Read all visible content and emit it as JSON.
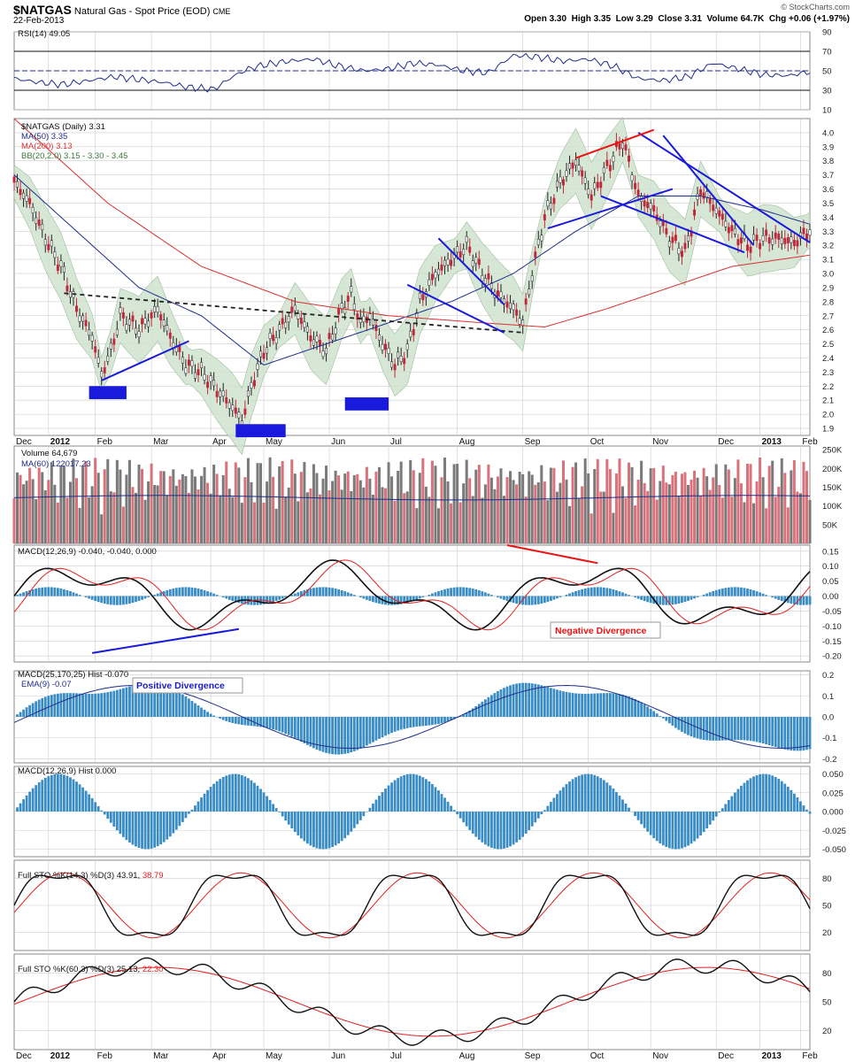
{
  "header": {
    "symbol": "$NATGAS",
    "name": "Natural Gas - Spot Price (EOD)",
    "exchange": "CME",
    "date": "22-Feb-2013",
    "ohlc": "Open 3.30  High 3.35  Low 3.29  Close 3.31  Volume 64.7K  Chg +0.06 (+1.97%)",
    "source": "© StockCharts.com"
  },
  "x_axis": {
    "labels": [
      "Dec",
      "2012",
      "Feb",
      "Mar",
      "Apr",
      "May",
      "Jun",
      "Jul",
      "Aug",
      "Sep",
      "Oct",
      "Nov",
      "Dec",
      "2013",
      "Feb"
    ]
  },
  "colors": {
    "price_up": "#222222",
    "price_down": "#c0283a",
    "ma50": "#1f2d8a",
    "ma200": "#d93030",
    "bb_fill": "#cfe3cf",
    "vol_up": "#7a7a7a",
    "vol_down": "#d9727a",
    "macd_hist": "#3a8dc4",
    "trend_blue": "#1a1adc",
    "trend_red": "#ee1111",
    "neckline": "#222222",
    "sto_k": "#111111",
    "sto_d": "#e02020",
    "grid": "#cccccc"
  },
  "chart_data": [
    {
      "type": "line",
      "panel": "rsi",
      "legend": "RSI(14) 49.05",
      "ylim": [
        10,
        90
      ],
      "yticks": [
        10,
        30,
        50,
        70,
        90
      ],
      "hlines": [
        30,
        50,
        70
      ],
      "series": [
        {
          "name": "RSI(14)",
          "x": [
            0,
            8,
            16,
            24,
            32,
            40,
            48,
            56,
            64,
            70,
            75,
            80,
            88,
            96,
            104,
            112,
            120,
            128,
            136,
            144,
            152,
            160,
            168,
            176,
            184,
            192,
            200,
            208,
            216,
            224,
            232,
            240,
            248,
            255
          ],
          "values": [
            42,
            38,
            36,
            40,
            44,
            41,
            38,
            33,
            31,
            44,
            52,
            56,
            60,
            62,
            55,
            50,
            52,
            58,
            56,
            50,
            48,
            66,
            64,
            60,
            62,
            55,
            42,
            40,
            44,
            58,
            52,
            46,
            45,
            49.05
          ]
        }
      ]
    },
    {
      "type": "line",
      "panel": "price",
      "legend": [
        "$NATGAS (Daily) 3.31",
        "MA(50) 3.35",
        "MA(200) 3.13",
        "BB(20,2.0) 3.15 - 3.30 - 3.45"
      ],
      "ylim": [
        1.85,
        4.1
      ],
      "yticks": [
        1.9,
        2.0,
        2.1,
        2.2,
        2.3,
        2.4,
        2.5,
        2.6,
        2.7,
        2.8,
        2.9,
        3.0,
        3.1,
        3.2,
        3.3,
        3.4,
        3.5,
        3.6,
        3.7,
        3.8,
        3.9,
        4.0
      ],
      "series": [
        {
          "name": "$NATGAS",
          "x": [
            0,
            5,
            10,
            15,
            20,
            25,
            28,
            31,
            34,
            40,
            46,
            50,
            55,
            60,
            66,
            70,
            73,
            76,
            80,
            85,
            90,
            95,
            100,
            105,
            108,
            111,
            114,
            118,
            122,
            126,
            130,
            135,
            140,
            145,
            150,
            155,
            160,
            163,
            166,
            170,
            175,
            180,
            185,
            190,
            195,
            200,
            205,
            210,
            215,
            220,
            225,
            230,
            235,
            240,
            245,
            250,
            255
          ],
          "values": [
            3.65,
            3.5,
            3.25,
            3.05,
            2.75,
            2.55,
            2.28,
            2.45,
            2.7,
            2.6,
            2.75,
            2.55,
            2.35,
            2.3,
            2.15,
            2.05,
            1.95,
            2.2,
            2.45,
            2.6,
            2.75,
            2.55,
            2.45,
            2.75,
            2.85,
            2.65,
            2.7,
            2.5,
            2.35,
            2.45,
            2.8,
            3.0,
            3.1,
            3.2,
            3.0,
            2.85,
            2.75,
            2.65,
            3.0,
            3.4,
            3.65,
            3.8,
            3.55,
            3.75,
            3.95,
            3.55,
            3.45,
            3.25,
            3.15,
            3.6,
            3.45,
            3.3,
            3.2,
            3.25,
            3.25,
            3.22,
            3.31
          ]
        },
        {
          "name": "MA(50)",
          "x": [
            0,
            20,
            40,
            60,
            80,
            100,
            120,
            140,
            160,
            180,
            200,
            220,
            240,
            255
          ],
          "values": [
            3.7,
            3.3,
            2.9,
            2.7,
            2.35,
            2.5,
            2.65,
            2.8,
            3.0,
            3.3,
            3.55,
            3.55,
            3.45,
            3.35
          ]
        },
        {
          "name": "MA(200)",
          "x": [
            0,
            30,
            60,
            90,
            120,
            150,
            170,
            190,
            210,
            230,
            255
          ],
          "values": [
            4.1,
            3.5,
            3.05,
            2.8,
            2.7,
            2.65,
            2.62,
            2.75,
            2.9,
            3.05,
            3.13
          ]
        }
      ],
      "annotations": [
        "trendlines",
        "falling wedge channels",
        "support boxes",
        "neckline"
      ]
    },
    {
      "type": "bar",
      "panel": "volume",
      "legend": [
        "Volume 64,679",
        "MA(60) 122017.23"
      ],
      "yticks": [
        "250K",
        "200K",
        "150K",
        "100K",
        "50K"
      ],
      "ylim": [
        0,
        250000
      ],
      "series": [
        {
          "name": "MA(60)",
          "values": [
            122017.23
          ]
        }
      ]
    },
    {
      "type": "line",
      "panel": "macd1",
      "legend": "MACD(12,26,9) -0.040, -0.040, 0.000",
      "ylim": [
        -0.22,
        0.17
      ],
      "yticks": [
        0.15,
        0.1,
        0.05,
        0.0,
        -0.05,
        -0.1,
        -0.15,
        -0.2
      ],
      "annotation": "Negative Divergence"
    },
    {
      "type": "bar",
      "panel": "macd2",
      "legend": [
        "MACD(25,170,25) Hist -0.070",
        "EMA(9) -0.07"
      ],
      "ylim": [
        -0.22,
        0.22
      ],
      "yticks": [
        0.2,
        0.1,
        0.0,
        -0.1,
        -0.2
      ],
      "annotation": "Positive Divergence"
    },
    {
      "type": "bar",
      "panel": "macd_hist",
      "legend": "MACD(12,26,9) Hist 0.000",
      "ylim": [
        -0.06,
        0.06
      ],
      "yticks": [
        0.05,
        0.025,
        0.0,
        -0.025,
        -0.05
      ]
    },
    {
      "type": "line",
      "panel": "sto1",
      "legend": [
        "Full STO %K(14,3) %D(3) ",
        "43.91",
        "38.79"
      ],
      "ylim": [
        0,
        100
      ],
      "yticks": [
        80,
        50,
        20
      ]
    },
    {
      "type": "line",
      "panel": "sto2",
      "legend": [
        "Full STO %K(60,3) %D(3) ",
        "25.13",
        "22.30"
      ],
      "ylim": [
        0,
        100
      ],
      "yticks": [
        80,
        50,
        20
      ]
    }
  ]
}
